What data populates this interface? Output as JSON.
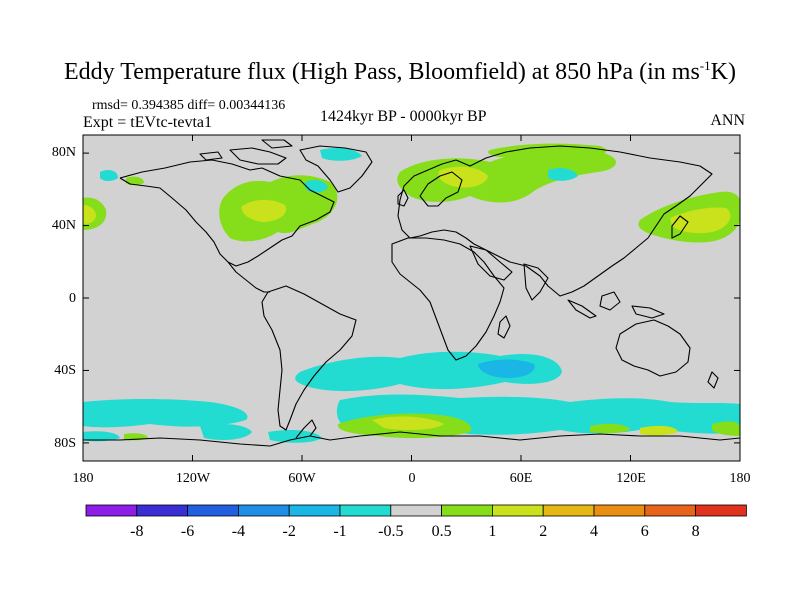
{
  "title": {
    "text_main": "Eddy Temperature flux (High Pass, Bloomfield) at 850 hPa (in ms",
    "text_sup": "-1",
    "text_end": "K)"
  },
  "stats": "rmsd= 0.394385 diff= 0.00344136",
  "experiment": "Expt = tEVtc-tevta1",
  "period": "1424kyr BP - 0000kyr BP",
  "season": "ANN",
  "lat_labels": [
    "80N",
    "40N",
    "0",
    "40S",
    "80S"
  ],
  "lon_labels": [
    "180",
    "120W",
    "60W",
    "0",
    "60E",
    "120E",
    "180"
  ],
  "colorbar": {
    "labels": [
      "-8",
      "-6",
      "-4",
      "-2",
      "-1",
      "-0.5",
      "0.5",
      "1",
      "2",
      "4",
      "6",
      "8"
    ],
    "colors": [
      "#8c1ee8",
      "#3a2fd4",
      "#1f5fe0",
      "#1f8fe6",
      "#1ab6e6",
      "#22dcd2",
      "#d2d2d2",
      "#86de1a",
      "#c9e21c",
      "#e6b814",
      "#e88e10",
      "#e8641a",
      "#e0321c"
    ]
  },
  "map_colors": {
    "background": "#d2d2d2",
    "land_outline": "#000000",
    "positive_05_1": "#86de1a",
    "positive_1_2": "#c9e21c",
    "negative_1_05": "#22dcd2",
    "negative_2_1": "#1ab6e6"
  }
}
